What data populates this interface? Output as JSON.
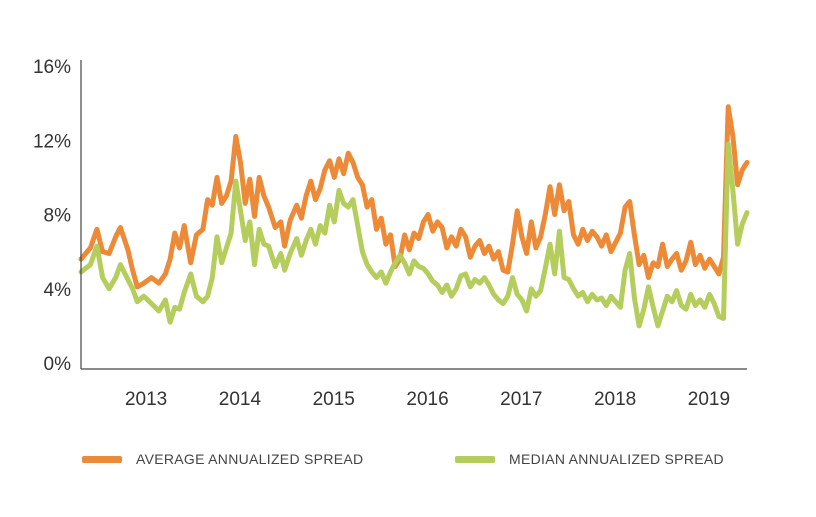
{
  "chart_data": {
    "type": "line",
    "title": "",
    "xlabel": "",
    "ylabel": "",
    "x_ticks": [
      "2013",
      "2014",
      "2015",
      "2016",
      "2017",
      "2018",
      "2019"
    ],
    "y_ticks": [
      "0%",
      "4%",
      "8%",
      "12%",
      "16%"
    ],
    "ylim": [
      0,
      16
    ],
    "x_range": [
      2012.55,
      2019.65
    ],
    "grid": false,
    "legend_position": "bottom",
    "series": [
      {
        "name": "AVERAGE ANNUALIZED SPREAD",
        "color": "#EC8A37",
        "points": [
          [
            2012.55,
            5.6
          ],
          [
            2012.65,
            6.2
          ],
          [
            2012.72,
            7.2
          ],
          [
            2012.78,
            6.0
          ],
          [
            2012.85,
            5.9
          ],
          [
            2012.92,
            6.8
          ],
          [
            2012.97,
            7.3
          ],
          [
            2013.05,
            6.1
          ],
          [
            2013.1,
            5.0
          ],
          [
            2013.15,
            4.1
          ],
          [
            2013.22,
            4.3
          ],
          [
            2013.3,
            4.6
          ],
          [
            2013.38,
            4.3
          ],
          [
            2013.45,
            4.8
          ],
          [
            2013.5,
            5.6
          ],
          [
            2013.55,
            7.0
          ],
          [
            2013.6,
            6.2
          ],
          [
            2013.65,
            7.4
          ],
          [
            2013.72,
            5.4
          ],
          [
            2013.78,
            6.9
          ],
          [
            2013.85,
            7.2
          ],
          [
            2013.9,
            8.8
          ],
          [
            2013.95,
            8.5
          ],
          [
            2014.0,
            10.0
          ],
          [
            2014.05,
            8.6
          ],
          [
            2014.1,
            9.0
          ],
          [
            2014.15,
            9.8
          ],
          [
            2014.2,
            12.2
          ],
          [
            2014.25,
            10.8
          ],
          [
            2014.3,
            8.6
          ],
          [
            2014.35,
            9.9
          ],
          [
            2014.4,
            7.9
          ],
          [
            2014.45,
            10.0
          ],
          [
            2014.5,
            9.0
          ],
          [
            2014.55,
            8.4
          ],
          [
            2014.62,
            7.3
          ],
          [
            2014.68,
            7.6
          ],
          [
            2014.72,
            6.3
          ],
          [
            2014.78,
            7.7
          ],
          [
            2014.85,
            8.5
          ],
          [
            2014.9,
            7.8
          ],
          [
            2014.95,
            9.0
          ],
          [
            2015.0,
            9.8
          ],
          [
            2015.05,
            8.8
          ],
          [
            2015.1,
            9.4
          ],
          [
            2015.15,
            10.4
          ],
          [
            2015.2,
            10.9
          ],
          [
            2015.25,
            10.0
          ],
          [
            2015.3,
            11.0
          ],
          [
            2015.35,
            10.2
          ],
          [
            2015.4,
            11.3
          ],
          [
            2015.45,
            10.8
          ],
          [
            2015.5,
            10.0
          ],
          [
            2015.55,
            9.6
          ],
          [
            2015.6,
            8.4
          ],
          [
            2015.65,
            8.8
          ],
          [
            2015.7,
            7.2
          ],
          [
            2015.75,
            7.8
          ],
          [
            2015.8,
            6.4
          ],
          [
            2015.85,
            6.9
          ],
          [
            2015.9,
            5.2
          ],
          [
            2015.95,
            5.6
          ],
          [
            2016.0,
            6.9
          ],
          [
            2016.05,
            6.1
          ],
          [
            2016.1,
            7.0
          ],
          [
            2016.15,
            6.7
          ],
          [
            2016.2,
            7.6
          ],
          [
            2016.25,
            8.0
          ],
          [
            2016.3,
            7.1
          ],
          [
            2016.35,
            7.6
          ],
          [
            2016.4,
            7.3
          ],
          [
            2016.45,
            6.2
          ],
          [
            2016.5,
            6.8
          ],
          [
            2016.55,
            6.3
          ],
          [
            2016.6,
            7.2
          ],
          [
            2016.65,
            6.8
          ],
          [
            2016.7,
            5.7
          ],
          [
            2016.75,
            6.3
          ],
          [
            2016.8,
            6.6
          ],
          [
            2016.85,
            5.9
          ],
          [
            2016.9,
            6.3
          ],
          [
            2016.95,
            5.6
          ],
          [
            2017.0,
            6.0
          ],
          [
            2017.05,
            5.0
          ],
          [
            2017.1,
            4.9
          ],
          [
            2017.15,
            6.4
          ],
          [
            2017.2,
            8.2
          ],
          [
            2017.25,
            6.8
          ],
          [
            2017.3,
            5.9
          ],
          [
            2017.35,
            7.6
          ],
          [
            2017.4,
            6.2
          ],
          [
            2017.45,
            6.8
          ],
          [
            2017.5,
            8.0
          ],
          [
            2017.55,
            9.5
          ],
          [
            2017.6,
            8.0
          ],
          [
            2017.65,
            9.6
          ],
          [
            2017.7,
            8.2
          ],
          [
            2017.75,
            8.7
          ],
          [
            2017.8,
            6.9
          ],
          [
            2017.85,
            6.4
          ],
          [
            2017.9,
            7.2
          ],
          [
            2017.95,
            6.6
          ],
          [
            2018.0,
            7.1
          ],
          [
            2018.05,
            6.8
          ],
          [
            2018.1,
            6.3
          ],
          [
            2018.15,
            6.9
          ],
          [
            2018.2,
            6.0
          ],
          [
            2018.25,
            6.5
          ],
          [
            2018.3,
            7.0
          ],
          [
            2018.35,
            8.4
          ],
          [
            2018.4,
            8.7
          ],
          [
            2018.45,
            6.9
          ],
          [
            2018.5,
            5.3
          ],
          [
            2018.55,
            5.8
          ],
          [
            2018.6,
            4.6
          ],
          [
            2018.65,
            5.4
          ],
          [
            2018.7,
            5.2
          ],
          [
            2018.75,
            6.4
          ],
          [
            2018.8,
            5.2
          ],
          [
            2018.85,
            5.6
          ],
          [
            2018.9,
            5.9
          ],
          [
            2018.95,
            5.0
          ],
          [
            2019.0,
            5.5
          ],
          [
            2019.05,
            6.5
          ],
          [
            2019.1,
            5.3
          ],
          [
            2019.15,
            5.8
          ],
          [
            2019.2,
            5.1
          ],
          [
            2019.25,
            5.6
          ],
          [
            2019.3,
            5.2
          ],
          [
            2019.35,
            4.8
          ],
          [
            2019.4,
            5.7
          ],
          [
            2019.45,
            13.8
          ],
          [
            2019.5,
            12.2
          ],
          [
            2019.55,
            9.6
          ],
          [
            2019.6,
            10.4
          ],
          [
            2019.65,
            10.8
          ]
        ]
      },
      {
        "name": "MEDIAN ANNUALIZED SPREAD",
        "color": "#B5CD5C",
        "points": [
          [
            2012.55,
            4.9
          ],
          [
            2012.65,
            5.3
          ],
          [
            2012.72,
            6.3
          ],
          [
            2012.78,
            4.6
          ],
          [
            2012.85,
            4.0
          ],
          [
            2012.92,
            4.6
          ],
          [
            2012.97,
            5.3
          ],
          [
            2013.05,
            4.5
          ],
          [
            2013.1,
            4.0
          ],
          [
            2013.15,
            3.3
          ],
          [
            2013.22,
            3.6
          ],
          [
            2013.3,
            3.2
          ],
          [
            2013.38,
            2.8
          ],
          [
            2013.45,
            3.4
          ],
          [
            2013.5,
            2.2
          ],
          [
            2013.55,
            3.0
          ],
          [
            2013.6,
            2.9
          ],
          [
            2013.65,
            3.8
          ],
          [
            2013.72,
            4.8
          ],
          [
            2013.78,
            3.6
          ],
          [
            2013.85,
            3.3
          ],
          [
            2013.9,
            3.6
          ],
          [
            2013.95,
            4.6
          ],
          [
            2014.0,
            6.8
          ],
          [
            2014.05,
            5.4
          ],
          [
            2014.1,
            6.2
          ],
          [
            2014.15,
            7.0
          ],
          [
            2014.2,
            9.8
          ],
          [
            2014.25,
            8.2
          ],
          [
            2014.3,
            6.6
          ],
          [
            2014.35,
            7.6
          ],
          [
            2014.4,
            5.3
          ],
          [
            2014.45,
            7.2
          ],
          [
            2014.5,
            6.4
          ],
          [
            2014.55,
            6.3
          ],
          [
            2014.62,
            5.2
          ],
          [
            2014.68,
            5.9
          ],
          [
            2014.72,
            5.0
          ],
          [
            2014.78,
            5.9
          ],
          [
            2014.85,
            6.7
          ],
          [
            2014.9,
            5.8
          ],
          [
            2014.95,
            6.6
          ],
          [
            2015.0,
            7.2
          ],
          [
            2015.05,
            6.4
          ],
          [
            2015.1,
            7.4
          ],
          [
            2015.15,
            7.0
          ],
          [
            2015.2,
            8.5
          ],
          [
            2015.25,
            7.6
          ],
          [
            2015.3,
            9.3
          ],
          [
            2015.35,
            8.6
          ],
          [
            2015.4,
            8.4
          ],
          [
            2015.45,
            8.8
          ],
          [
            2015.5,
            7.4
          ],
          [
            2015.55,
            6.0
          ],
          [
            2015.6,
            5.3
          ],
          [
            2015.65,
            4.9
          ],
          [
            2015.7,
            4.6
          ],
          [
            2015.75,
            4.9
          ],
          [
            2015.8,
            4.3
          ],
          [
            2015.85,
            4.9
          ],
          [
            2015.9,
            5.4
          ],
          [
            2015.95,
            5.8
          ],
          [
            2016.0,
            5.4
          ],
          [
            2016.05,
            4.8
          ],
          [
            2016.1,
            5.5
          ],
          [
            2016.15,
            5.2
          ],
          [
            2016.2,
            5.1
          ],
          [
            2016.25,
            4.8
          ],
          [
            2016.3,
            4.4
          ],
          [
            2016.35,
            4.2
          ],
          [
            2016.4,
            3.8
          ],
          [
            2016.45,
            4.2
          ],
          [
            2016.5,
            3.6
          ],
          [
            2016.55,
            4.0
          ],
          [
            2016.6,
            4.7
          ],
          [
            2016.65,
            4.8
          ],
          [
            2016.7,
            4.1
          ],
          [
            2016.75,
            4.5
          ],
          [
            2016.8,
            4.3
          ],
          [
            2016.85,
            4.6
          ],
          [
            2016.9,
            4.2
          ],
          [
            2016.95,
            3.7
          ],
          [
            2017.0,
            3.4
          ],
          [
            2017.05,
            3.2
          ],
          [
            2017.1,
            3.6
          ],
          [
            2017.15,
            4.6
          ],
          [
            2017.2,
            3.7
          ],
          [
            2017.25,
            3.4
          ],
          [
            2017.3,
            2.8
          ],
          [
            2017.35,
            4.0
          ],
          [
            2017.4,
            3.6
          ],
          [
            2017.45,
            3.9
          ],
          [
            2017.5,
            5.1
          ],
          [
            2017.55,
            6.4
          ],
          [
            2017.6,
            4.8
          ],
          [
            2017.65,
            7.1
          ],
          [
            2017.7,
            4.6
          ],
          [
            2017.75,
            4.5
          ],
          [
            2017.8,
            4.0
          ],
          [
            2017.85,
            3.6
          ],
          [
            2017.9,
            3.8
          ],
          [
            2017.95,
            3.3
          ],
          [
            2018.0,
            3.7
          ],
          [
            2018.05,
            3.4
          ],
          [
            2018.1,
            3.5
          ],
          [
            2018.15,
            3.1
          ],
          [
            2018.2,
            3.6
          ],
          [
            2018.25,
            3.3
          ],
          [
            2018.3,
            3.0
          ],
          [
            2018.35,
            5.0
          ],
          [
            2018.4,
            5.9
          ],
          [
            2018.45,
            3.5
          ],
          [
            2018.5,
            2.0
          ],
          [
            2018.55,
            2.9
          ],
          [
            2018.6,
            4.1
          ],
          [
            2018.65,
            3.0
          ],
          [
            2018.7,
            2.0
          ],
          [
            2018.75,
            2.8
          ],
          [
            2018.8,
            3.6
          ],
          [
            2018.85,
            3.3
          ],
          [
            2018.9,
            3.9
          ],
          [
            2018.95,
            3.1
          ],
          [
            2019.0,
            2.9
          ],
          [
            2019.05,
            3.7
          ],
          [
            2019.1,
            3.1
          ],
          [
            2019.15,
            3.4
          ],
          [
            2019.2,
            3.0
          ],
          [
            2019.25,
            3.7
          ],
          [
            2019.3,
            3.2
          ],
          [
            2019.35,
            2.5
          ],
          [
            2019.4,
            2.4
          ],
          [
            2019.45,
            11.8
          ],
          [
            2019.5,
            9.3
          ],
          [
            2019.55,
            6.4
          ],
          [
            2019.6,
            7.5
          ],
          [
            2019.65,
            8.1
          ]
        ]
      }
    ]
  }
}
